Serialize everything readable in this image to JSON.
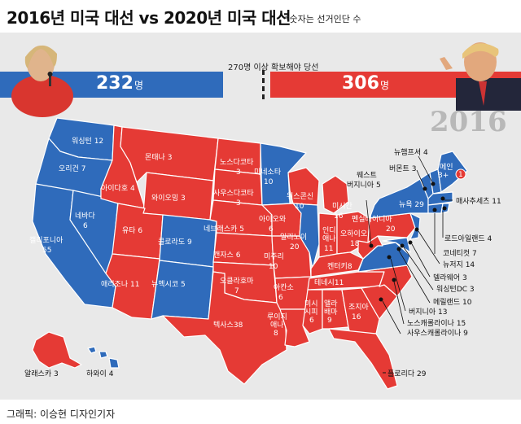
{
  "title": "2016년 미국 대선 vs 2020년 미국 대선",
  "note": "*숫자는 선거인단 수",
  "credit": "그래픽: 이승현 디자인기자",
  "threshold_label": "270명 이상 확보해야 당선",
  "year_label": "2016",
  "left": {
    "votes": "232",
    "unit": "명",
    "color": "#2f6bbb"
  },
  "right": {
    "votes": "306",
    "unit": "명",
    "color": "#e53a35"
  },
  "colors": {
    "dem": "#2f6bbb",
    "rep": "#e53a35",
    "background": "#e9e9e9"
  },
  "states": {
    "wa": "워싱턴 12",
    "or1": "오리건 7",
    "ca1": "캘리포니아",
    "ca2": "55",
    "nv1": "네바다",
    "nv2": "6",
    "id": "아이다호 4",
    "mt": "몬태나 3",
    "wy": "와이오밍 3",
    "ut": "유타 6",
    "co": "콜로라도 9",
    "az": "애리조나 11",
    "nm": "뉴멕시코 5",
    "nd1": "노스다코타",
    "nd2": "3",
    "sd1": "사우스다코타",
    "sd2": "3",
    "ne": "네브래스카 5",
    "ks": "캔자스 6",
    "ok1": "오클라호마",
    "ok2": "7",
    "tx": "텍사스38",
    "mn1": "미네소타",
    "mn2": "10",
    "ia1": "아이오와",
    "ia2": "6",
    "mo1": "미주리",
    "mo2": "10",
    "ar1": "아칸소",
    "ar2": "6",
    "la1": "루이지",
    "la2": "애나",
    "la3": "8",
    "wi1": "위스콘신",
    "wi2": "10",
    "il1": "일리노이",
    "il2": "20",
    "mi1": "미시간",
    "mi2": "16",
    "in1": "인디",
    "in2": "애나",
    "in3": "11",
    "oh1": "오하이오",
    "oh2": "18",
    "ky": "켄터키8",
    "tn": "테네시11",
    "ms1": "미시",
    "ms2": "시피",
    "ms3": "6",
    "al1": "앨라",
    "al2": "배마",
    "al3": "9",
    "ga1": "조지아",
    "ga2": "16",
    "fl": "플로리다 29",
    "pa1": "펜실베이니아",
    "pa2": "20",
    "ny": "뉴욕 29",
    "me1": "메인",
    "me2": "3+",
    "me3": "1",
    "ak": "알래스카 3",
    "hi": "하와이 4"
  },
  "callouts": {
    "nh": "뉴햄프셔 4",
    "vt": "버몬트 3",
    "wv1": "웨스트",
    "wv2": "버지니아 5",
    "ma": "매사추세츠 11",
    "ri": "로드아일랜드 4",
    "ct": "코네티컷 7",
    "nj": "뉴저지 14",
    "de": "델라웨어 3",
    "dc": "워싱턴DC 3",
    "md": "메릴랜드 10",
    "va": "버지니아 13",
    "nc": "노스캐롤라이나 15",
    "sc": "사우스캐롤라이나 9"
  }
}
